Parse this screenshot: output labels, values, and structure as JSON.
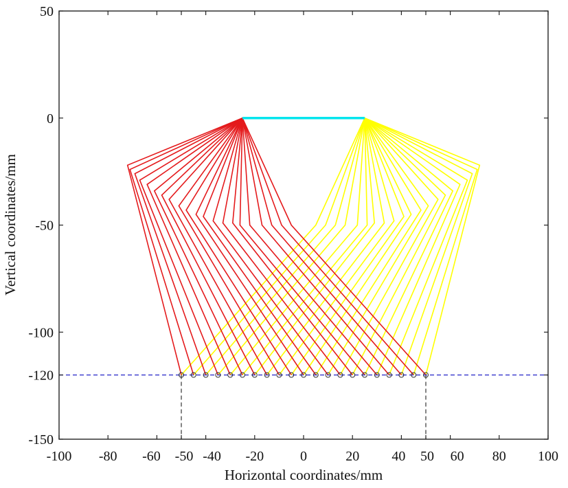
{
  "chart_data": {
    "type": "line",
    "title": "",
    "xlabel": "Horizontal coordinates/mm",
    "ylabel": "Vertical coordinates/mm",
    "xlim": [
      -100,
      100
    ],
    "ylim": [
      -150,
      50
    ],
    "x_ticks": [
      -100,
      -80,
      -60,
      -50,
      -40,
      -20,
      0,
      20,
      40,
      50,
      60,
      80,
      100
    ],
    "y_ticks": [
      50,
      0,
      -50,
      -100,
      -120,
      -150
    ],
    "grid": false,
    "colors": {
      "left_paths": "#e41a1c",
      "right_paths": "#ffff00",
      "top_link": "#00e5ee",
      "baseline": "#3333cc",
      "guides": "#333333",
      "markers": "#333333"
    },
    "top_link": {
      "x": [
        -25,
        25
      ],
      "y": [
        0,
        0
      ]
    },
    "baseline_y": -120,
    "guide_lines_x": [
      -50,
      50
    ],
    "target_points_x": [
      -50,
      -45,
      -40,
      -35,
      -30,
      -25,
      -20,
      -15,
      -10,
      -5,
      0,
      5,
      10,
      15,
      20,
      25,
      30,
      35,
      40,
      45,
      50
    ],
    "left_paths": [
      {
        "x": [
          -25,
          -72,
          -50
        ],
        "y": [
          0,
          -22,
          -120
        ]
      },
      {
        "x": [
          -25,
          -71,
          -45
        ],
        "y": [
          0,
          -24,
          -120
        ]
      },
      {
        "x": [
          -25,
          -69,
          -40
        ],
        "y": [
          0,
          -26,
          -120
        ]
      },
      {
        "x": [
          -25,
          -67,
          -35
        ],
        "y": [
          0,
          -29,
          -120
        ]
      },
      {
        "x": [
          -25,
          -64,
          -30
        ],
        "y": [
          0,
          -31,
          -120
        ]
      },
      {
        "x": [
          -25,
          -61,
          -25
        ],
        "y": [
          0,
          -34,
          -120
        ]
      },
      {
        "x": [
          -25,
          -58,
          -20
        ],
        "y": [
          0,
          -36,
          -120
        ]
      },
      {
        "x": [
          -25,
          -55,
          -15
        ],
        "y": [
          0,
          -38,
          -120
        ]
      },
      {
        "x": [
          -25,
          -51,
          -10
        ],
        "y": [
          0,
          -41,
          -120
        ]
      },
      {
        "x": [
          -25,
          -48,
          -5
        ],
        "y": [
          0,
          -43,
          -120
        ]
      },
      {
        "x": [
          -25,
          -44,
          0
        ],
        "y": [
          0,
          -45,
          -120
        ]
      },
      {
        "x": [
          -25,
          -41,
          5
        ],
        "y": [
          0,
          -46,
          -120
        ]
      },
      {
        "x": [
          -25,
          -37,
          10
        ],
        "y": [
          0,
          -48,
          -120
        ]
      },
      {
        "x": [
          -25,
          -33,
          15
        ],
        "y": [
          0,
          -49,
          -120
        ]
      },
      {
        "x": [
          -25,
          -29,
          20
        ],
        "y": [
          0,
          -49,
          -120
        ]
      },
      {
        "x": [
          -25,
          -26,
          25
        ],
        "y": [
          0,
          -50,
          -120
        ]
      },
      {
        "x": [
          -25,
          -22,
          30
        ],
        "y": [
          0,
          -50,
          -120
        ]
      },
      {
        "x": [
          -25,
          -17,
          35
        ],
        "y": [
          0,
          -50,
          -120
        ]
      },
      {
        "x": [
          -25,
          -13,
          40
        ],
        "y": [
          0,
          -50,
          -120
        ]
      },
      {
        "x": [
          -25,
          -9,
          45
        ],
        "y": [
          0,
          -50,
          -120
        ]
      },
      {
        "x": [
          -25,
          -5,
          50
        ],
        "y": [
          0,
          -50,
          -120
        ]
      }
    ],
    "right_paths": [
      {
        "x": [
          25,
          5,
          -50
        ],
        "y": [
          0,
          -50,
          -120
        ]
      },
      {
        "x": [
          25,
          9,
          -45
        ],
        "y": [
          0,
          -50,
          -120
        ]
      },
      {
        "x": [
          25,
          13,
          -40
        ],
        "y": [
          0,
          -50,
          -120
        ]
      },
      {
        "x": [
          25,
          17,
          -35
        ],
        "y": [
          0,
          -50,
          -120
        ]
      },
      {
        "x": [
          25,
          22,
          -30
        ],
        "y": [
          0,
          -50,
          -120
        ]
      },
      {
        "x": [
          25,
          26,
          -25
        ],
        "y": [
          0,
          -50,
          -120
        ]
      },
      {
        "x": [
          25,
          29,
          -20
        ],
        "y": [
          0,
          -49,
          -120
        ]
      },
      {
        "x": [
          25,
          33,
          -15
        ],
        "y": [
          0,
          -49,
          -120
        ]
      },
      {
        "x": [
          25,
          37,
          -10
        ],
        "y": [
          0,
          -48,
          -120
        ]
      },
      {
        "x": [
          25,
          41,
          -5
        ],
        "y": [
          0,
          -46,
          -120
        ]
      },
      {
        "x": [
          25,
          44,
          0
        ],
        "y": [
          0,
          -45,
          -120
        ]
      },
      {
        "x": [
          25,
          48,
          5
        ],
        "y": [
          0,
          -43,
          -120
        ]
      },
      {
        "x": [
          25,
          51,
          10
        ],
        "y": [
          0,
          -41,
          -120
        ]
      },
      {
        "x": [
          25,
          55,
          15
        ],
        "y": [
          0,
          -38,
          -120
        ]
      },
      {
        "x": [
          25,
          58,
          20
        ],
        "y": [
          0,
          -36,
          -120
        ]
      },
      {
        "x": [
          25,
          61,
          25
        ],
        "y": [
          0,
          -34,
          -120
        ]
      },
      {
        "x": [
          25,
          64,
          30
        ],
        "y": [
          0,
          -31,
          -120
        ]
      },
      {
        "x": [
          25,
          67,
          35
        ],
        "y": [
          0,
          -29,
          -120
        ]
      },
      {
        "x": [
          25,
          69,
          40
        ],
        "y": [
          0,
          -26,
          -120
        ]
      },
      {
        "x": [
          25,
          71,
          45
        ],
        "y": [
          0,
          -24,
          -120
        ]
      },
      {
        "x": [
          25,
          72,
          50
        ],
        "y": [
          0,
          -22,
          -120
        ]
      }
    ]
  }
}
